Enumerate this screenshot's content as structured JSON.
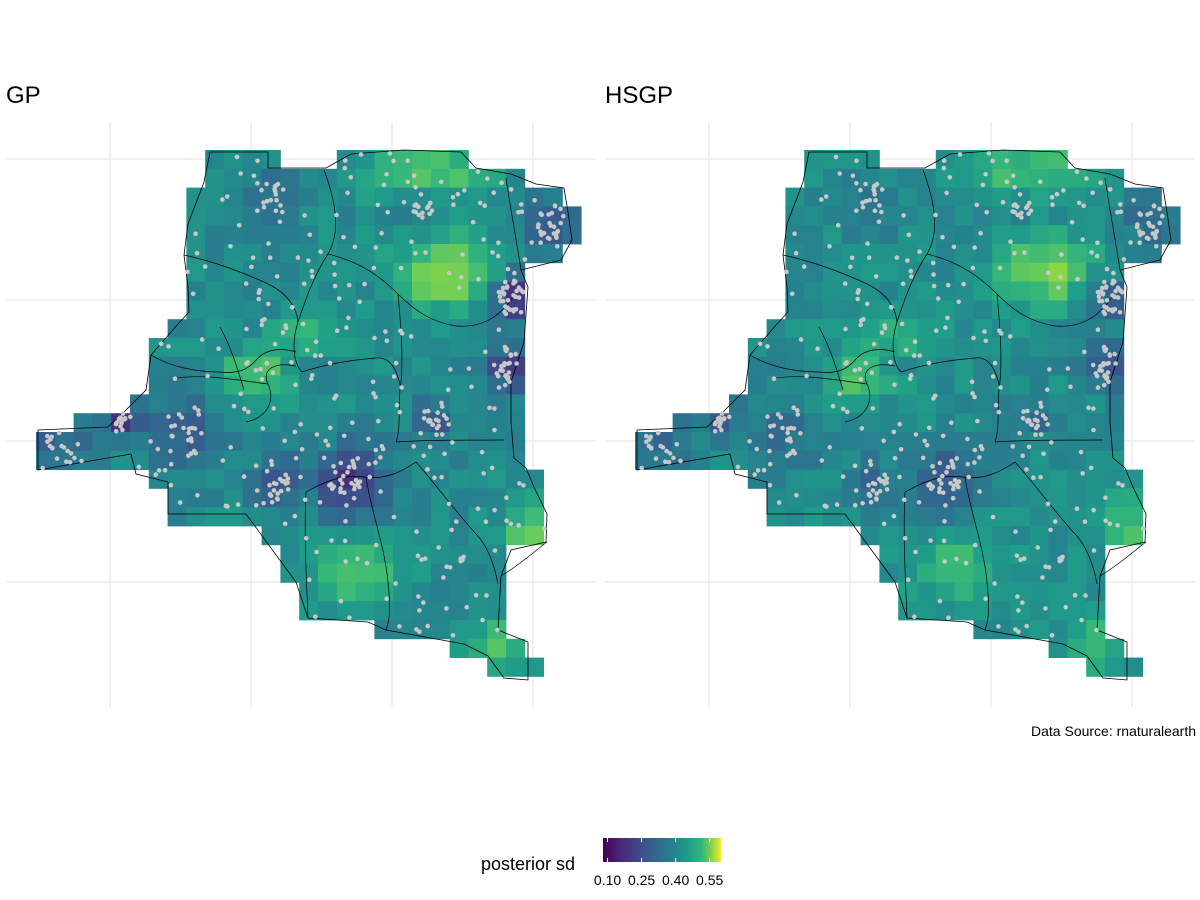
{
  "panels": [
    {
      "title": "GP"
    },
    {
      "title": "HSGP"
    }
  ],
  "caption": "Data Source: rnaturalearth",
  "legend": {
    "title": "posterior sd",
    "ticks": [
      "0.10",
      "0.25",
      "0.40",
      "0.55"
    ],
    "range": [
      0.08,
      0.6
    ],
    "tick_values": [
      0.1,
      0.25,
      0.4,
      0.55
    ]
  },
  "colors": {
    "viridis_low": "#440154",
    "viridis_mid": "#21918c",
    "viridis_high": "#fde725",
    "gridline": "#ebebeb",
    "points": "#c8c8c8",
    "borders": "#000000"
  }
}
